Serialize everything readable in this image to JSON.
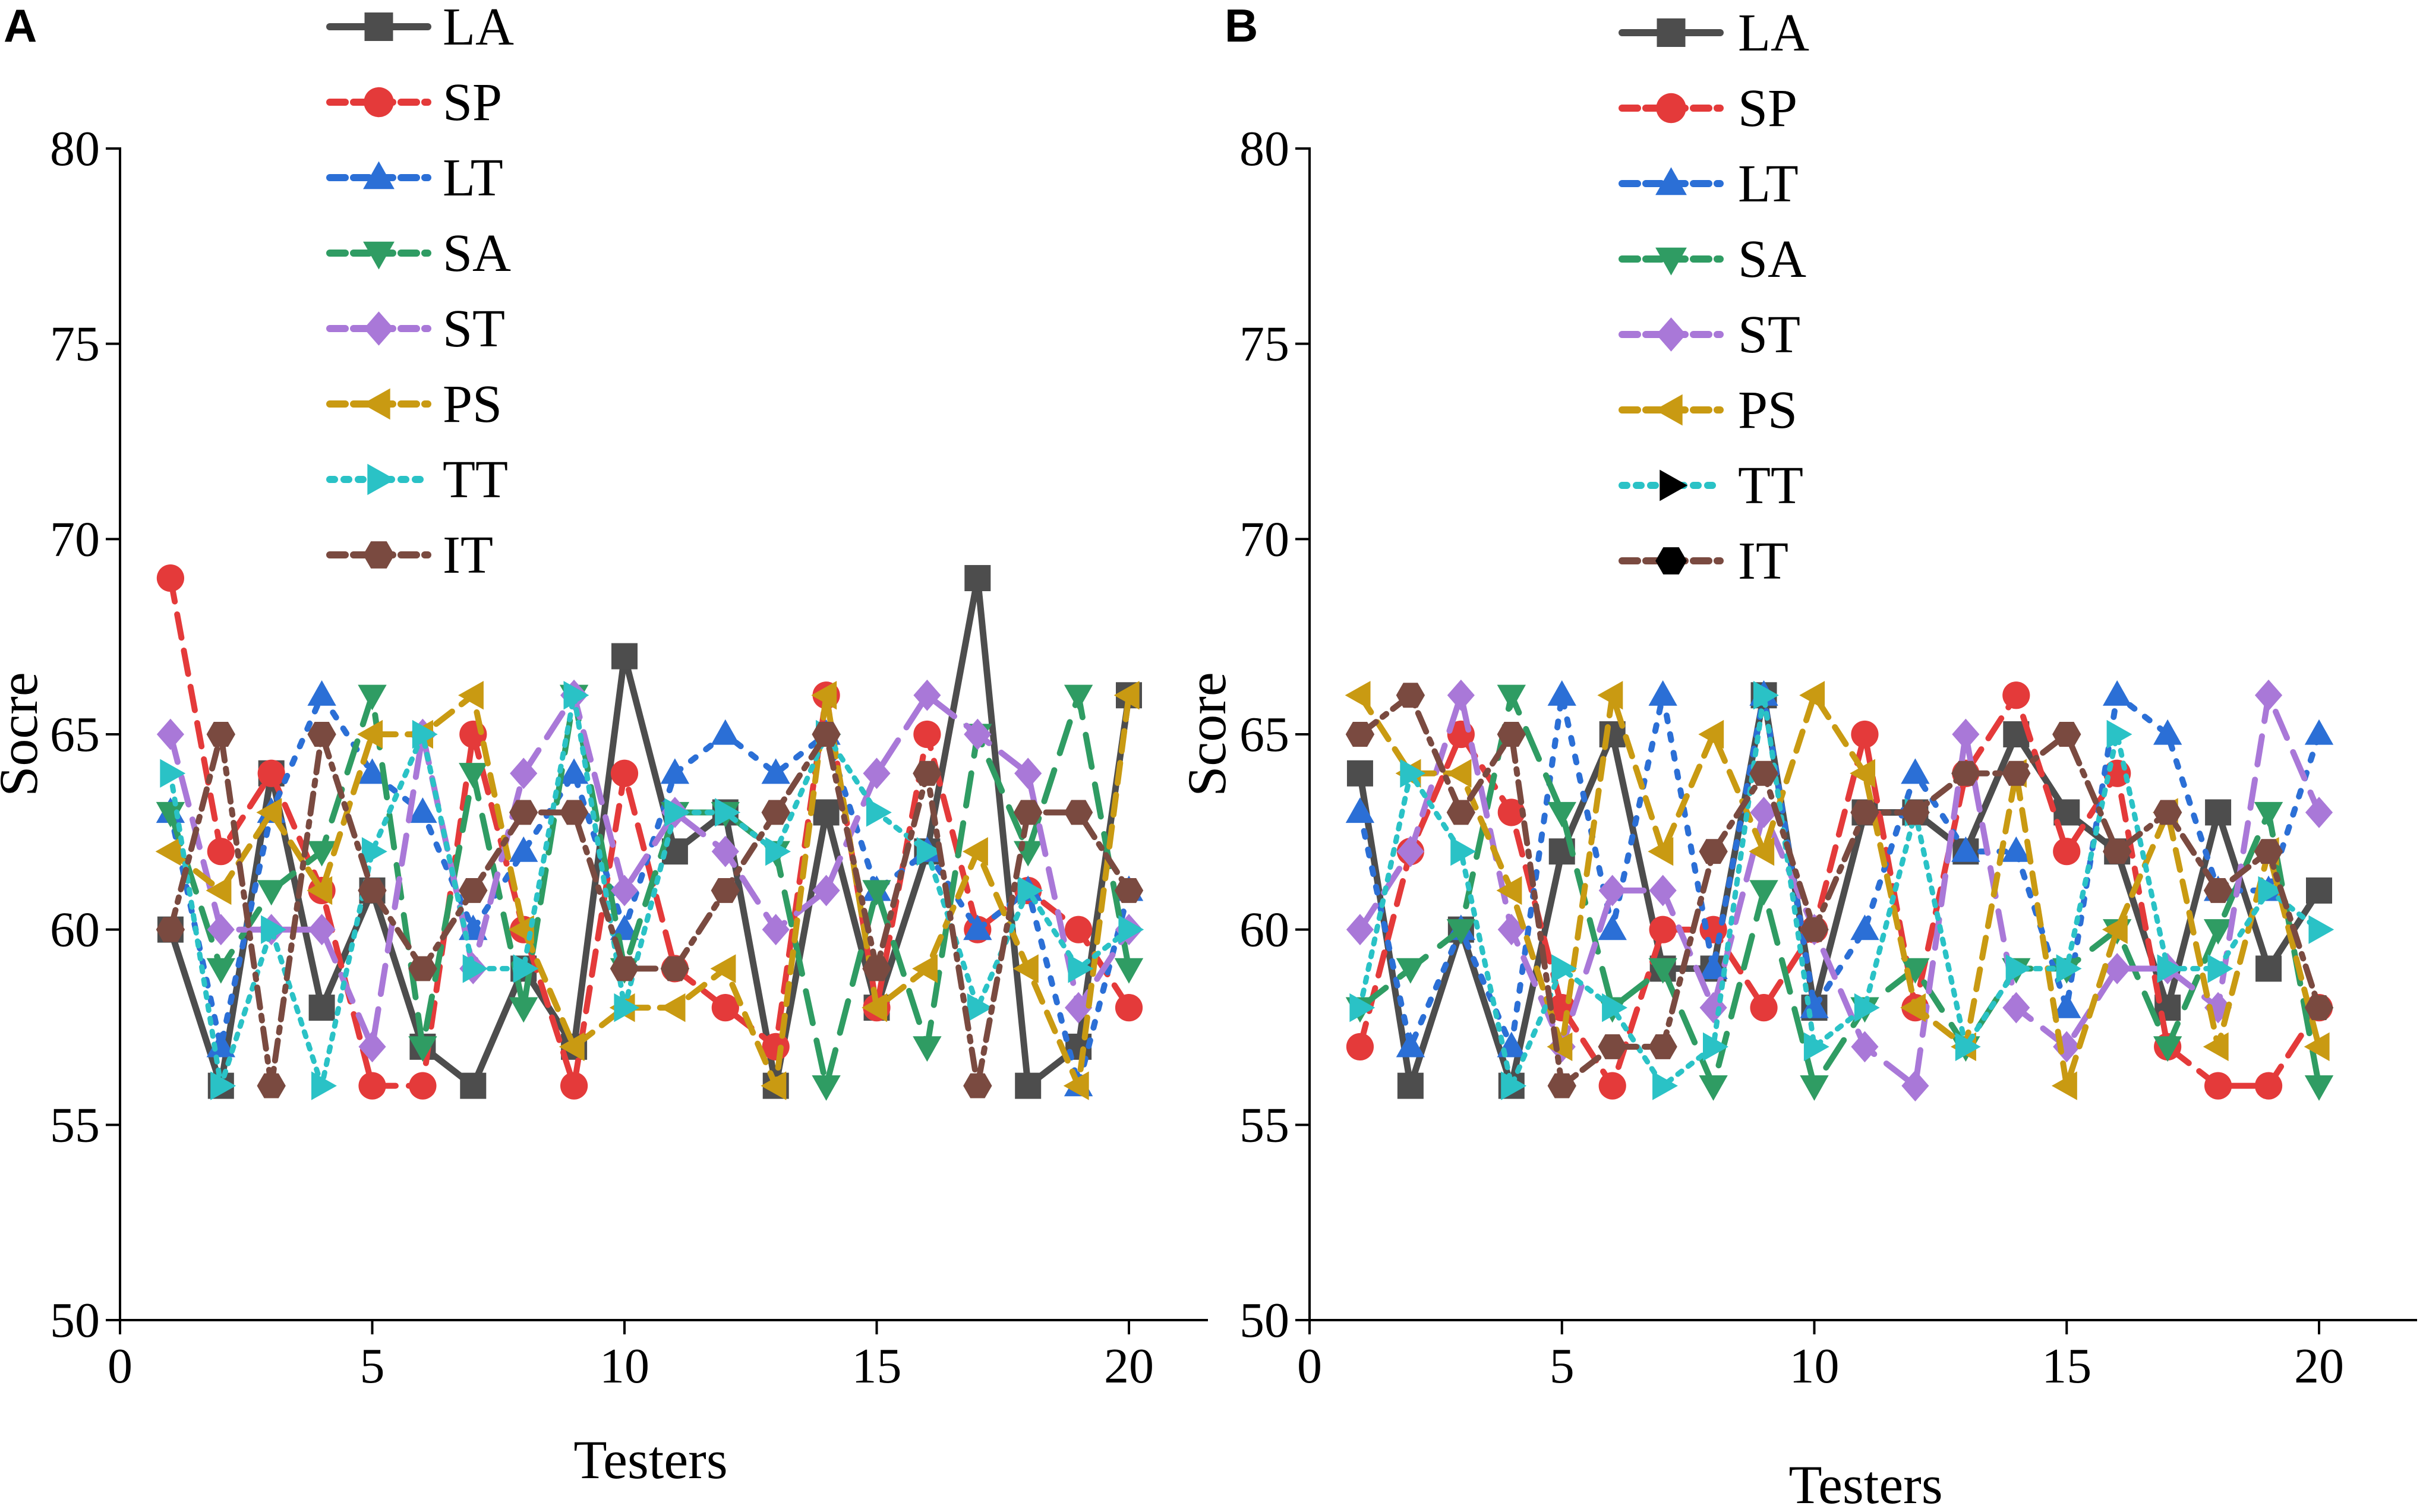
{
  "colors": {
    "LA": "#4d4d4d",
    "SP": "#e43a3a",
    "LT": "#2b6fd6",
    "SA": "#2f9c63",
    "ST": "#a978d8",
    "PS": "#c99a12",
    "TT": "#2ac2c6",
    "IT": "#7a4a40"
  },
  "chart_data": [
    {
      "type": "line",
      "panel": "A",
      "xlabel": "Testers",
      "ylabel": "Socre",
      "xlim": [
        0,
        22
      ],
      "ylim": [
        50,
        80
      ],
      "xticks": [
        0,
        5,
        10,
        15,
        20
      ],
      "yticks": [
        50,
        55,
        60,
        65,
        70,
        75,
        80
      ],
      "x": [
        1,
        2,
        3,
        4,
        5,
        6,
        7,
        8,
        9,
        10,
        11,
        12,
        13,
        14,
        15,
        16,
        17,
        18,
        19,
        20
      ],
      "series": [
        {
          "name": "LA",
          "values": [
            60,
            56,
            64,
            58,
            61,
            57,
            56,
            59,
            57,
            67,
            62,
            63,
            56,
            63,
            58,
            62,
            69,
            56,
            57,
            66
          ]
        },
        {
          "name": "SP",
          "values": [
            69,
            62,
            64,
            61,
            56,
            56,
            65,
            60,
            56,
            64,
            59,
            58,
            57,
            66,
            58,
            65,
            60,
            61,
            60,
            58
          ]
        },
        {
          "name": "LT",
          "values": [
            63,
            57,
            63,
            66,
            64,
            63,
            60,
            62,
            64,
            60,
            64,
            65,
            64,
            65,
            61,
            62,
            60,
            61,
            56,
            61
          ]
        },
        {
          "name": "SA",
          "values": [
            63,
            59,
            61,
            62,
            66,
            57,
            64,
            58,
            66,
            59,
            63,
            63,
            62,
            56,
            61,
            57,
            65,
            62,
            66,
            59
          ]
        },
        {
          "name": "ST",
          "values": [
            65,
            60,
            60,
            60,
            57,
            65,
            59,
            64,
            66,
            61,
            63,
            62,
            60,
            61,
            64,
            66,
            65,
            64,
            58,
            60
          ]
        },
        {
          "name": "PS",
          "values": [
            62,
            61,
            63,
            61,
            65,
            65,
            66,
            60,
            57,
            58,
            58,
            59,
            56,
            66,
            58,
            59,
            62,
            59,
            56,
            66
          ]
        },
        {
          "name": "TT",
          "values": [
            64,
            56,
            60,
            56,
            62,
            65,
            59,
            59,
            66,
            58,
            63,
            63,
            62,
            65,
            63,
            62,
            58,
            61,
            59,
            60
          ]
        },
        {
          "name": "IT",
          "values": [
            60,
            65,
            56,
            65,
            61,
            59,
            61,
            63,
            63,
            59,
            59,
            61,
            63,
            65,
            59,
            64,
            56,
            63,
            63,
            61
          ]
        }
      ]
    },
    {
      "type": "line",
      "panel": "B",
      "xlabel": "Testers",
      "ylabel": "Score",
      "xlim": [
        0,
        22
      ],
      "ylim": [
        50,
        80
      ],
      "xticks": [
        0,
        5,
        10,
        15,
        20
      ],
      "yticks": [
        50,
        55,
        60,
        65,
        70,
        75,
        80
      ],
      "x": [
        1,
        2,
        3,
        4,
        5,
        6,
        7,
        8,
        9,
        10,
        11,
        12,
        13,
        14,
        15,
        16,
        17,
        18,
        19,
        20
      ],
      "series": [
        {
          "name": "LA",
          "values": [
            64,
            56,
            60,
            56,
            62,
            65,
            59,
            59,
            66,
            58,
            63,
            63,
            62,
            65,
            63,
            62,
            58,
            63,
            59,
            61
          ]
        },
        {
          "name": "SP",
          "values": [
            57,
            62,
            65,
            63,
            58,
            56,
            60,
            60,
            58,
            60,
            65,
            58,
            64,
            66,
            62,
            64,
            57,
            56,
            56,
            58
          ]
        },
        {
          "name": "LT",
          "values": [
            63,
            57,
            60,
            57,
            66,
            60,
            66,
            59,
            66,
            58,
            60,
            64,
            62,
            62,
            58,
            66,
            65,
            61,
            61,
            65
          ]
        },
        {
          "name": "SA",
          "values": [
            58,
            59,
            60,
            66,
            63,
            58,
            59,
            56,
            61,
            56,
            58,
            59,
            57,
            59,
            59,
            60,
            57,
            60,
            63,
            56
          ]
        },
        {
          "name": "ST",
          "values": [
            60,
            62,
            66,
            60,
            57,
            61,
            61,
            58,
            63,
            60,
            57,
            56,
            65,
            58,
            57,
            59,
            59,
            58,
            66,
            63
          ]
        },
        {
          "name": "PS",
          "values": [
            66,
            64,
            64,
            61,
            57,
            66,
            62,
            65,
            62,
            66,
            64,
            58,
            57,
            64,
            56,
            60,
            63,
            57,
            62,
            57
          ]
        },
        {
          "name": "TT",
          "values": [
            58,
            64,
            62,
            56,
            59,
            58,
            56,
            57,
            66,
            57,
            58,
            63,
            57,
            59,
            59,
            65,
            59,
            59,
            61,
            60
          ]
        },
        {
          "name": "IT",
          "values": [
            65,
            66,
            63,
            65,
            56,
            57,
            57,
            62,
            64,
            60,
            63,
            63,
            64,
            64,
            65,
            62,
            63,
            61,
            62,
            58
          ]
        }
      ]
    }
  ],
  "legend_markers": {
    "A": {
      "LA": "square",
      "SP": "circle",
      "LT": "triangle-up",
      "SA": "triangle-down",
      "ST": "diamond",
      "PS": "triangle-left",
      "TT": "triangle-right",
      "IT": "hexagon"
    },
    "B": {
      "LA": "square",
      "SP": "circle",
      "LT": "triangle-up",
      "SA": "triangle-down",
      "ST": "diamond",
      "PS": "triangle-left",
      "TT": "triangle-right-black",
      "IT": "hexagon-black"
    }
  }
}
